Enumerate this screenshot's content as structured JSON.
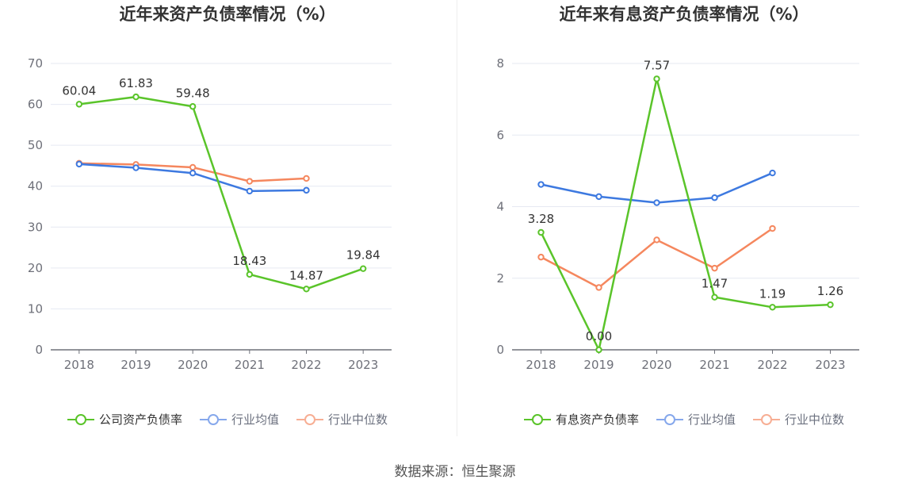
{
  "colors": {
    "company": "#5ac42a",
    "industry_avg": "#3d79e0",
    "industry_median": "#f5875e",
    "grid": "#e6e9f2",
    "axis": "#6e7079"
  },
  "source": "数据来源：恒生聚源",
  "chart_data": [
    {
      "type": "line",
      "title": "近年来资产负债率情况（%）",
      "categories": [
        "2018",
        "2019",
        "2020",
        "2021",
        "2022",
        "2023"
      ],
      "ylim": [
        0,
        70
      ],
      "yticks": [
        0,
        10,
        20,
        30,
        40,
        50,
        60,
        70
      ],
      "grid": true,
      "legend_position": "bottom",
      "series": [
        {
          "name": "公司资产负债率",
          "color_key": "company",
          "values": [
            60.04,
            61.83,
            59.48,
            18.43,
            14.87,
            19.84
          ],
          "labels": [
            "60.04",
            "61.83",
            "59.48",
            "18.43",
            "14.87",
            "19.84"
          ]
        },
        {
          "name": "行业均值",
          "color_key": "industry_avg",
          "values": [
            45.4,
            44.5,
            43.2,
            38.8,
            39.0,
            null
          ]
        },
        {
          "name": "行业中位数",
          "color_key": "industry_median",
          "values": [
            45.6,
            45.3,
            44.6,
            41.2,
            41.9,
            null
          ]
        }
      ]
    },
    {
      "type": "line",
      "title": "近年来有息资产负债率情况（%）",
      "categories": [
        "2018",
        "2019",
        "2020",
        "2021",
        "2022",
        "2023"
      ],
      "ylim": [
        0,
        8
      ],
      "yticks": [
        0,
        2,
        4,
        6,
        8
      ],
      "grid": true,
      "legend_position": "bottom",
      "series": [
        {
          "name": "有息资产负债率",
          "color_key": "company",
          "values": [
            3.28,
            0.0,
            7.57,
            1.47,
            1.19,
            1.26
          ],
          "labels": [
            "3.28",
            "0.00",
            "7.57",
            "1.47",
            "1.19",
            "1.26"
          ]
        },
        {
          "name": "行业均值",
          "color_key": "industry_avg",
          "values": [
            4.62,
            4.28,
            4.11,
            4.25,
            4.94,
            null
          ]
        },
        {
          "name": "行业中位数",
          "color_key": "industry_median",
          "values": [
            2.59,
            1.74,
            3.07,
            2.28,
            3.39,
            null
          ]
        }
      ]
    }
  ]
}
